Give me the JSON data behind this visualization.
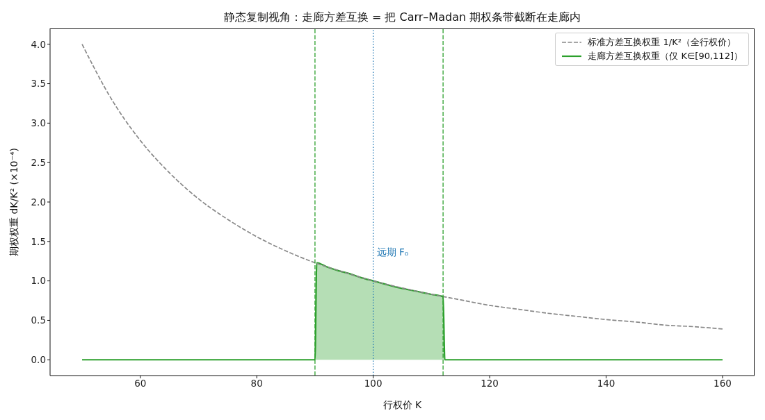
{
  "chart_data": {
    "type": "line",
    "title": "静态复制视角：走廊方差互换 = 把 Carr–Madan 期权条带截断在走廊内",
    "xlabel": "行权价 K",
    "ylabel": "期权权重 dK/K² (×10⁻⁴)",
    "xlim": [
      44.5,
      165.5
    ],
    "xticks": [
      60,
      80,
      100,
      120,
      140,
      160
    ],
    "ylim": [
      -0.2,
      4.2
    ],
    "yticks": [
      {
        "value": 0,
        "label": "0.0"
      },
      0.5,
      {
        "value": 1,
        "label": "1.0"
      },
      1.5,
      {
        "value": 2,
        "label": "2.0"
      },
      2.5,
      {
        "value": 3,
        "label": "3.0"
      },
      3.5,
      {
        "value": 4,
        "label": "4.0"
      }
    ],
    "legend": "top right",
    "series": [
      {
        "name": "标准方差互换权重 1/K²（全行权价）",
        "type": "line",
        "line_style": "dashed",
        "color": "#888888",
        "x": [
          50,
          55,
          60,
          65,
          70,
          75,
          80,
          85,
          90,
          95,
          100,
          105,
          110,
          115,
          120,
          125,
          130,
          135,
          140,
          145,
          150,
          155,
          160
        ],
        "values": [
          4.0,
          3.31,
          2.78,
          2.37,
          2.04,
          1.78,
          1.56,
          1.38,
          1.23,
          1.11,
          1.0,
          0.91,
          0.83,
          0.76,
          0.69,
          0.64,
          0.59,
          0.55,
          0.51,
          0.48,
          0.44,
          0.42,
          0.39
        ]
      },
      {
        "name": "走廊方差互换权重（仅 K∈[90,112]）",
        "type": "area",
        "line_style": "solid",
        "color": "#2ca02c",
        "x": [
          50,
          90,
          90.3,
          92,
          94,
          96,
          98,
          100,
          102,
          104,
          106,
          108,
          110,
          112,
          112.3,
          160
        ],
        "values": [
          0,
          0,
          1.23,
          1.18,
          1.13,
          1.09,
          1.04,
          1.0,
          0.96,
          0.92,
          0.89,
          0.86,
          0.83,
          0.8,
          0,
          0
        ]
      }
    ],
    "ref_lines": [
      {
        "axis": "x",
        "value": 90,
        "color": "#2ca02c",
        "line_style": "dashed"
      },
      {
        "axis": "x",
        "value": 112,
        "color": "#2ca02c",
        "line_style": "dashed"
      },
      {
        "axis": "x",
        "value": 100,
        "label": "远期 F₀",
        "color": "#1f77b4",
        "line_style": "dotted"
      }
    ]
  }
}
